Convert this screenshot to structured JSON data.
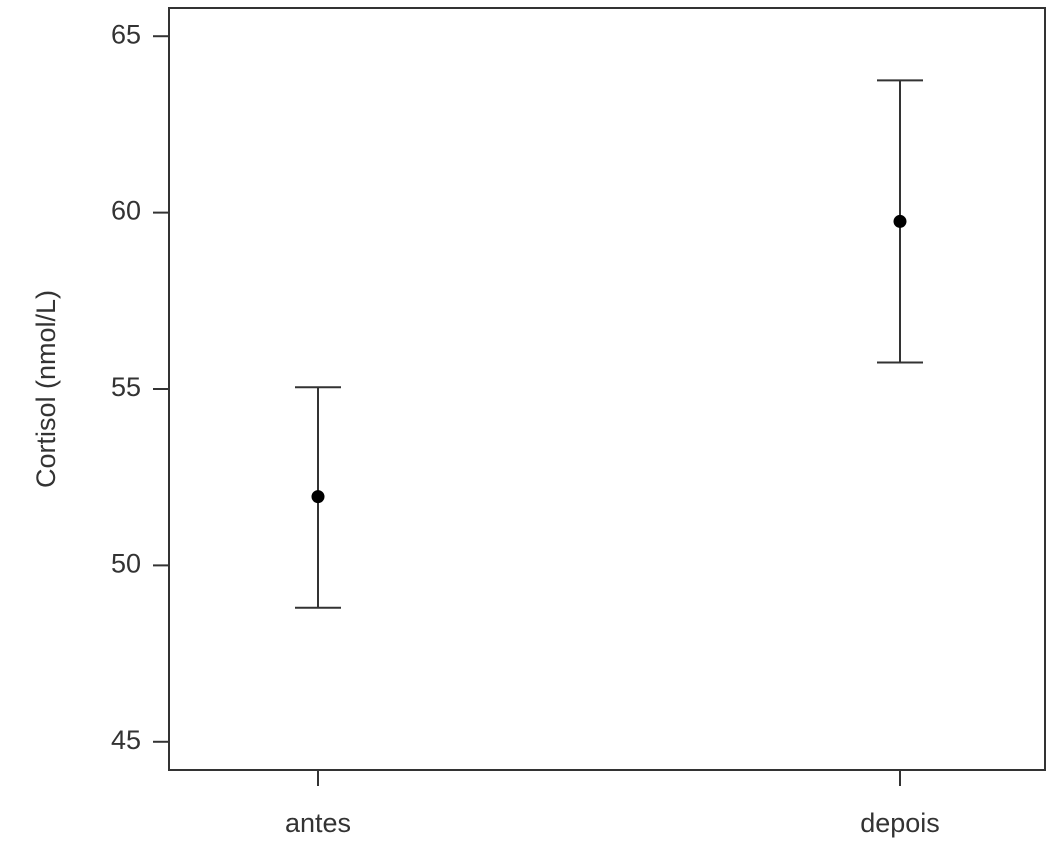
{
  "chart_data": {
    "type": "scatter",
    "categories": [
      "antes",
      "depois"
    ],
    "series": [
      {
        "means": [
          51.95,
          59.75
        ],
        "lower": [
          48.8,
          55.75
        ],
        "upper": [
          55.05,
          63.75
        ]
      }
    ],
    "title": "",
    "xlabel": "",
    "ylabel": "Cortisol (nmol/L)",
    "ylim": [
      44.2,
      65.8
    ],
    "yticks": [
      45,
      50,
      55,
      60,
      65
    ],
    "grid": false,
    "colors": {
      "axis": "#333333",
      "marker": "#000000",
      "errorbar": "#333333"
    }
  }
}
